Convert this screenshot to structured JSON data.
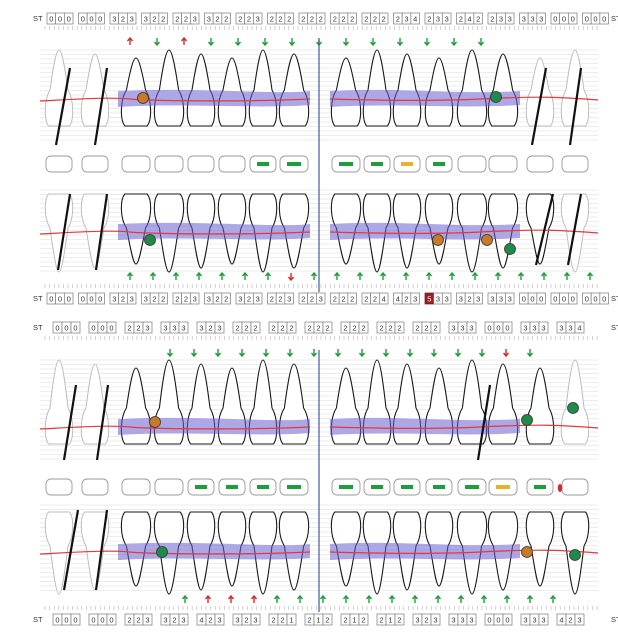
{
  "chart_title": "",
  "side_label": "ST",
  "colors": {
    "band": "#6a5fd0",
    "gum_line": "#e03a3a",
    "arrow_up_green": "#1e9e3a",
    "arrow_down_red": "#d22b2b",
    "implant_green": "#1f8a4a",
    "implant_orange": "#c67a2a",
    "highlight_cell": "#9c1f24",
    "filling_green": "#1e9e3a",
    "filling_yellow": "#e8b12a"
  },
  "rows": [
    {
      "id": "upper_a_top",
      "groups": [
        [
          "0",
          "0",
          "0"
        ],
        [
          "0",
          "0",
          "0"
        ],
        [
          "3",
          "2",
          "3"
        ],
        [
          "3",
          "2",
          "2"
        ],
        [
          "2",
          "2",
          "3"
        ],
        [
          "3",
          "2",
          "2"
        ],
        [
          "2",
          "2",
          "3"
        ],
        [
          "2",
          "2",
          "2"
        ],
        [
          "2",
          "2",
          "2"
        ],
        [
          "2",
          "2",
          "2"
        ],
        [
          "2",
          "2",
          "2"
        ],
        [
          "2",
          "3",
          "4"
        ],
        [
          "2",
          "3",
          "3"
        ],
        [
          "2",
          "4",
          "2"
        ],
        [
          "2",
          "3",
          "3"
        ],
        [
          "3",
          "3",
          "3"
        ],
        [
          "0",
          "0",
          "0"
        ],
        [
          "0",
          "0",
          "0"
        ]
      ]
    },
    {
      "id": "lower_a_bottom",
      "groups": [
        [
          "0",
          "0",
          "0"
        ],
        [
          "0",
          "0",
          "0"
        ],
        [
          "3",
          "2",
          "3"
        ],
        [
          "3",
          "2",
          "2"
        ],
        [
          "2",
          "2",
          "3"
        ],
        [
          "3",
          "2",
          "2"
        ],
        [
          "3",
          "2",
          "3"
        ],
        [
          "2",
          "2",
          "3"
        ],
        [
          "2",
          "2",
          "3"
        ],
        [
          "2",
          "2",
          "2"
        ],
        [
          "2",
          "2",
          "4"
        ],
        [
          "4",
          "2",
          "3"
        ],
        [
          "5",
          "3",
          "3"
        ],
        [
          "3",
          "2",
          "3"
        ],
        [
          "3",
          "3",
          "3"
        ],
        [
          "0",
          "0",
          "0"
        ],
        [
          "0",
          "0",
          "0"
        ],
        [
          "0",
          "0",
          "0"
        ]
      ],
      "highlight_value": "5"
    },
    {
      "id": "upper_b_top",
      "groups": [
        [
          "0",
          "0",
          "0"
        ],
        [
          "0",
          "0",
          "0"
        ],
        [
          "2",
          "2",
          "3"
        ],
        [
          "3",
          "3",
          "3"
        ],
        [
          "3",
          "2",
          "3"
        ],
        [
          "2",
          "2",
          "2"
        ],
        [
          "2",
          "2",
          "2"
        ],
        [
          "2",
          "2",
          "2"
        ],
        [
          "2",
          "2",
          "2"
        ],
        [
          "2",
          "2",
          "2"
        ],
        [
          "2",
          "2",
          "2"
        ],
        [
          "3",
          "3",
          "3"
        ],
        [
          "0",
          "0",
          "0"
        ],
        [
          "3",
          "3",
          "3"
        ],
        [
          "3",
          "3",
          "4"
        ]
      ]
    },
    {
      "id": "lower_b_bottom",
      "groups": [
        [
          "0",
          "0",
          "0"
        ],
        [
          "0",
          "0",
          "0"
        ],
        [
          "2",
          "2",
          "3"
        ],
        [
          "3",
          "2",
          "3"
        ],
        [
          "4",
          "2",
          "3"
        ],
        [
          "3",
          "2",
          "3"
        ],
        [
          "2",
          "2",
          "1"
        ],
        [
          "2",
          "1",
          "2"
        ],
        [
          "2",
          "1",
          "2"
        ],
        [
          "2",
          "1",
          "2"
        ],
        [
          "3",
          "2",
          "3"
        ],
        [
          "3",
          "3",
          "3"
        ],
        [
          "0",
          "0",
          "0"
        ],
        [
          "3",
          "3",
          "3"
        ],
        [
          "4",
          "2",
          "3"
        ]
      ]
    }
  ],
  "arrows": {
    "upper_a": [
      "up-red",
      "down-green",
      "up-red",
      "down-green",
      "down-green",
      "down-green",
      "down-green",
      "down-green",
      "down-green",
      "down-green",
      "down-green",
      "down-green",
      "down-green",
      "down-green"
    ],
    "lower_a": [
      "up-green",
      "up-green",
      "up-green",
      "up-green",
      "up-green",
      "up-green",
      "up-green",
      "down-red",
      "up-green",
      "up-green",
      "up-green",
      "up-green",
      "up-green",
      "up-green",
      "up-green",
      "up-green",
      "up-green",
      "up-green",
      "up-green",
      "up-green",
      "up-green"
    ],
    "upper_b": [
      "down-green",
      "down-green",
      "down-green",
      "down-green",
      "down-green",
      "down-green",
      "down-green",
      "down-green",
      "down-green",
      "down-green",
      "down-green",
      "down-green",
      "down-green",
      "down-green",
      "down-red",
      "down-green"
    ],
    "lower_b": [
      "up-green",
      "up-red",
      "up-red",
      "up-red",
      "up-green",
      "up-green",
      "up-green",
      "up-green",
      "up-green",
      "up-green",
      "up-green",
      "up-green",
      "up-green",
      "up-green",
      "up-green",
      "up-green",
      "up-green"
    ]
  },
  "markers": {
    "implant_a_upper": [
      "orange",
      "green"
    ],
    "implant_a_lower": [
      "green",
      "orange",
      "orange",
      "green"
    ],
    "implant_b_upper": [
      "orange",
      "green",
      "green"
    ],
    "implant_b_lower": [
      "green",
      "orange",
      "green"
    ]
  }
}
